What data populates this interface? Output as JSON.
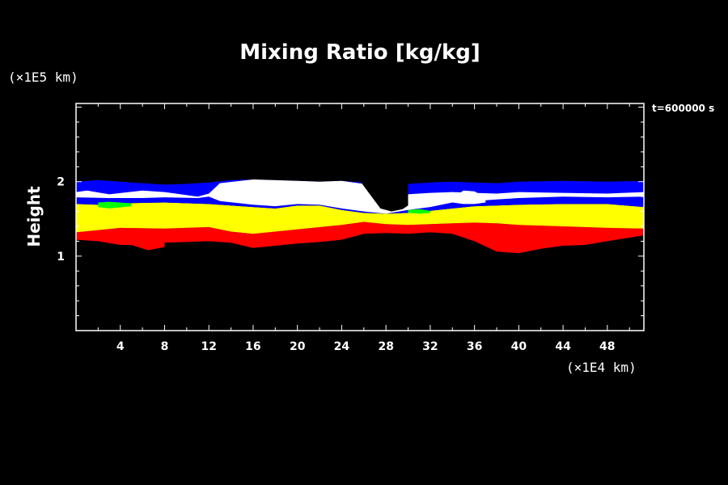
{
  "chart_data": {
    "type": "heatmap",
    "title": "Mixing Ratio [kg/kg]",
    "xlabel": "",
    "ylabel": "Height",
    "x_unit": "(×1E4 km)",
    "y_unit": "(×1E5 km)",
    "time_label": "t=600000 s",
    "x_ticks": [
      "4",
      "8",
      "12",
      "16",
      "20",
      "24",
      "28",
      "32",
      "36",
      "40",
      "44",
      "48"
    ],
    "y_ticks": [
      "1",
      "2"
    ],
    "xlim": [
      0,
      51.3
    ],
    "ylim": [
      0,
      3.05
    ],
    "grid": false,
    "legend": "none",
    "background_color": "#000000",
    "layers": [
      {
        "name": "red",
        "color": "#ff0000",
        "top": [
          [
            0,
            1.32
          ],
          [
            4,
            1.38
          ],
          [
            8,
            1.37
          ],
          [
            12,
            1.39
          ],
          [
            14,
            1.33
          ],
          [
            16,
            1.3
          ],
          [
            18,
            1.33
          ],
          [
            20,
            1.36
          ],
          [
            24,
            1.42
          ],
          [
            26,
            1.46
          ],
          [
            28,
            1.43
          ],
          [
            30,
            1.42
          ],
          [
            32,
            1.43
          ],
          [
            34,
            1.44
          ],
          [
            36,
            1.45
          ],
          [
            38,
            1.44
          ],
          [
            40,
            1.42
          ],
          [
            44,
            1.4
          ],
          [
            48,
            1.38
          ],
          [
            51.3,
            1.37
          ]
        ],
        "bottom": [
          [
            0,
            1.22
          ],
          [
            2,
            1.2
          ],
          [
            4,
            1.15
          ],
          [
            6,
            1.15
          ],
          [
            8,
            1.18
          ],
          [
            10,
            1.19
          ],
          [
            12,
            1.2
          ],
          [
            14,
            1.18
          ],
          [
            16,
            1.11
          ],
          [
            18,
            1.14
          ],
          [
            20,
            1.17
          ],
          [
            22,
            1.19
          ],
          [
            24,
            1.22
          ],
          [
            26,
            1.3
          ],
          [
            28,
            1.31
          ],
          [
            30,
            1.3
          ],
          [
            32,
            1.32
          ],
          [
            34,
            1.3
          ],
          [
            36,
            1.2
          ],
          [
            38,
            1.06
          ],
          [
            40,
            1.04
          ],
          [
            42,
            1.1
          ],
          [
            44,
            1.14
          ],
          [
            46,
            1.15
          ],
          [
            48,
            1.2
          ],
          [
            51.3,
            1.28
          ]
        ]
      },
      {
        "name": "red-patch-1",
        "color": "#ff0000",
        "top": [
          [
            5,
            1.2
          ],
          [
            6.5,
            1.22
          ],
          [
            8,
            1.18
          ]
        ],
        "bottom": [
          [
            5,
            1.15
          ],
          [
            6.5,
            1.08
          ],
          [
            8,
            1.12
          ]
        ]
      },
      {
        "name": "yellow",
        "color": "#ffff00",
        "top": [
          [
            0,
            1.7
          ],
          [
            2,
            1.69
          ],
          [
            4,
            1.71
          ],
          [
            8,
            1.72
          ],
          [
            12,
            1.7
          ],
          [
            14,
            1.68
          ],
          [
            16,
            1.66
          ],
          [
            18,
            1.64
          ],
          [
            20,
            1.68
          ],
          [
            22,
            1.68
          ],
          [
            24,
            1.62
          ],
          [
            26,
            1.58
          ],
          [
            28,
            1.57
          ],
          [
            30,
            1.58
          ],
          [
            32,
            1.61
          ],
          [
            34,
            1.64
          ],
          [
            36,
            1.67
          ],
          [
            38,
            1.68
          ],
          [
            40,
            1.69
          ],
          [
            44,
            1.7
          ],
          [
            48,
            1.7
          ],
          [
            51.3,
            1.66
          ]
        ],
        "bottom": [
          [
            0,
            1.32
          ],
          [
            4,
            1.38
          ],
          [
            8,
            1.37
          ],
          [
            12,
            1.39
          ],
          [
            14,
            1.33
          ],
          [
            16,
            1.3
          ],
          [
            18,
            1.33
          ],
          [
            20,
            1.36
          ],
          [
            24,
            1.42
          ],
          [
            26,
            1.46
          ],
          [
            28,
            1.43
          ],
          [
            30,
            1.42
          ],
          [
            32,
            1.43
          ],
          [
            34,
            1.44
          ],
          [
            36,
            1.45
          ],
          [
            38,
            1.44
          ],
          [
            40,
            1.42
          ],
          [
            44,
            1.4
          ],
          [
            48,
            1.38
          ],
          [
            51.3,
            1.37
          ]
        ]
      },
      {
        "name": "blue",
        "color": "#0000ff",
        "top": [
          [
            0,
            2.0
          ],
          [
            2,
            2.02
          ],
          [
            4,
            2.0
          ],
          [
            6,
            1.98
          ],
          [
            8,
            1.96
          ],
          [
            10,
            1.97
          ],
          [
            12,
            1.99
          ],
          [
            14,
            2.02
          ],
          [
            16,
            2.03
          ],
          [
            18,
            2.02
          ],
          [
            20,
            2.01
          ],
          [
            22,
            2.0
          ],
          [
            24,
            2.01
          ],
          [
            26,
            1.99
          ],
          [
            27,
            1.8
          ],
          [
            28,
            1.72
          ],
          [
            29,
            1.8
          ],
          [
            30,
            1.97
          ],
          [
            32,
            1.99
          ],
          [
            34,
            2.0
          ],
          [
            36,
            1.99
          ],
          [
            38,
            1.98
          ],
          [
            40,
            2.0
          ],
          [
            44,
            2.01
          ],
          [
            48,
            2.0
          ],
          [
            51.3,
            2.01
          ]
        ],
        "bottom": [
          [
            0,
            1.7
          ],
          [
            2,
            1.69
          ],
          [
            4,
            1.71
          ],
          [
            8,
            1.72
          ],
          [
            12,
            1.7
          ],
          [
            14,
            1.68
          ],
          [
            16,
            1.66
          ],
          [
            18,
            1.64
          ],
          [
            20,
            1.68
          ],
          [
            22,
            1.68
          ],
          [
            24,
            1.62
          ],
          [
            26,
            1.58
          ],
          [
            28,
            1.57
          ],
          [
            30,
            1.58
          ],
          [
            32,
            1.61
          ],
          [
            34,
            1.64
          ],
          [
            36,
            1.67
          ],
          [
            38,
            1.68
          ],
          [
            40,
            1.69
          ],
          [
            44,
            1.7
          ],
          [
            48,
            1.7
          ],
          [
            51.3,
            1.66
          ]
        ]
      },
      {
        "name": "white",
        "color": "#ffffff",
        "top": [
          [
            0,
            1.86
          ],
          [
            1,
            1.88
          ],
          [
            3,
            1.83
          ],
          [
            6,
            1.88
          ],
          [
            8,
            1.86
          ],
          [
            11,
            1.8
          ],
          [
            12,
            1.84
          ],
          [
            13,
            1.98
          ],
          [
            16,
            2.03
          ],
          [
            18,
            2.02
          ],
          [
            20,
            2.01
          ],
          [
            22,
            2.0
          ],
          [
            24,
            2.01
          ],
          [
            26,
            1.97
          ],
          [
            27,
            1.78
          ],
          [
            28,
            1.72
          ],
          [
            29,
            1.78
          ],
          [
            30,
            1.83
          ],
          [
            32,
            1.85
          ],
          [
            34,
            1.86
          ],
          [
            36,
            1.85
          ],
          [
            38,
            1.84
          ],
          [
            40,
            1.86
          ],
          [
            44,
            1.85
          ],
          [
            48,
            1.84
          ],
          [
            51.3,
            1.86
          ]
        ],
        "bottom": [
          [
            0,
            1.79
          ],
          [
            3,
            1.78
          ],
          [
            6,
            1.78
          ],
          [
            8,
            1.79
          ],
          [
            11,
            1.78
          ],
          [
            12,
            1.8
          ],
          [
            13,
            1.74
          ],
          [
            16,
            1.69
          ],
          [
            18,
            1.67
          ],
          [
            20,
            1.7
          ],
          [
            22,
            1.69
          ],
          [
            24,
            1.64
          ],
          [
            26,
            1.6
          ],
          [
            28,
            1.57
          ],
          [
            30,
            1.62
          ],
          [
            32,
            1.66
          ],
          [
            34,
            1.72
          ],
          [
            36,
            1.74
          ],
          [
            38,
            1.76
          ],
          [
            40,
            1.78
          ],
          [
            44,
            1.8
          ],
          [
            48,
            1.79
          ],
          [
            51.3,
            1.8
          ]
        ]
      },
      {
        "name": "black-gap",
        "color": "#000000",
        "top": [
          [
            25.8,
            2.05
          ],
          [
            27,
            2.05
          ],
          [
            28,
            2.05
          ],
          [
            29,
            2.05
          ],
          [
            30,
            2.05
          ]
        ],
        "bottom": [
          [
            25.8,
            1.98
          ],
          [
            26.5,
            1.84
          ],
          [
            27.5,
            1.64
          ],
          [
            28.5,
            1.6
          ],
          [
            29.5,
            1.63
          ],
          [
            30,
            1.68
          ]
        ]
      },
      {
        "name": "white-bump",
        "color": "#ffffff",
        "top": [
          [
            34,
            1.78
          ],
          [
            35,
            1.88
          ],
          [
            36,
            1.87
          ],
          [
            37,
            1.79
          ]
        ],
        "bottom": [
          [
            34,
            1.72
          ],
          [
            35,
            1.7
          ],
          [
            36,
            1.7
          ],
          [
            37,
            1.72
          ]
        ]
      },
      {
        "name": "green-1",
        "color": "#00ff00",
        "top": [
          [
            2,
            1.72
          ],
          [
            3,
            1.73
          ],
          [
            5,
            1.71
          ]
        ],
        "bottom": [
          [
            2,
            1.66
          ],
          [
            3,
            1.64
          ],
          [
            5,
            1.67
          ]
        ]
      },
      {
        "name": "green-2",
        "color": "#00ff00",
        "top": [
          [
            30,
            1.62
          ],
          [
            31,
            1.63
          ],
          [
            32,
            1.61
          ]
        ],
        "bottom": [
          [
            30,
            1.58
          ],
          [
            31,
            1.57
          ],
          [
            32,
            1.58
          ]
        ]
      }
    ]
  }
}
